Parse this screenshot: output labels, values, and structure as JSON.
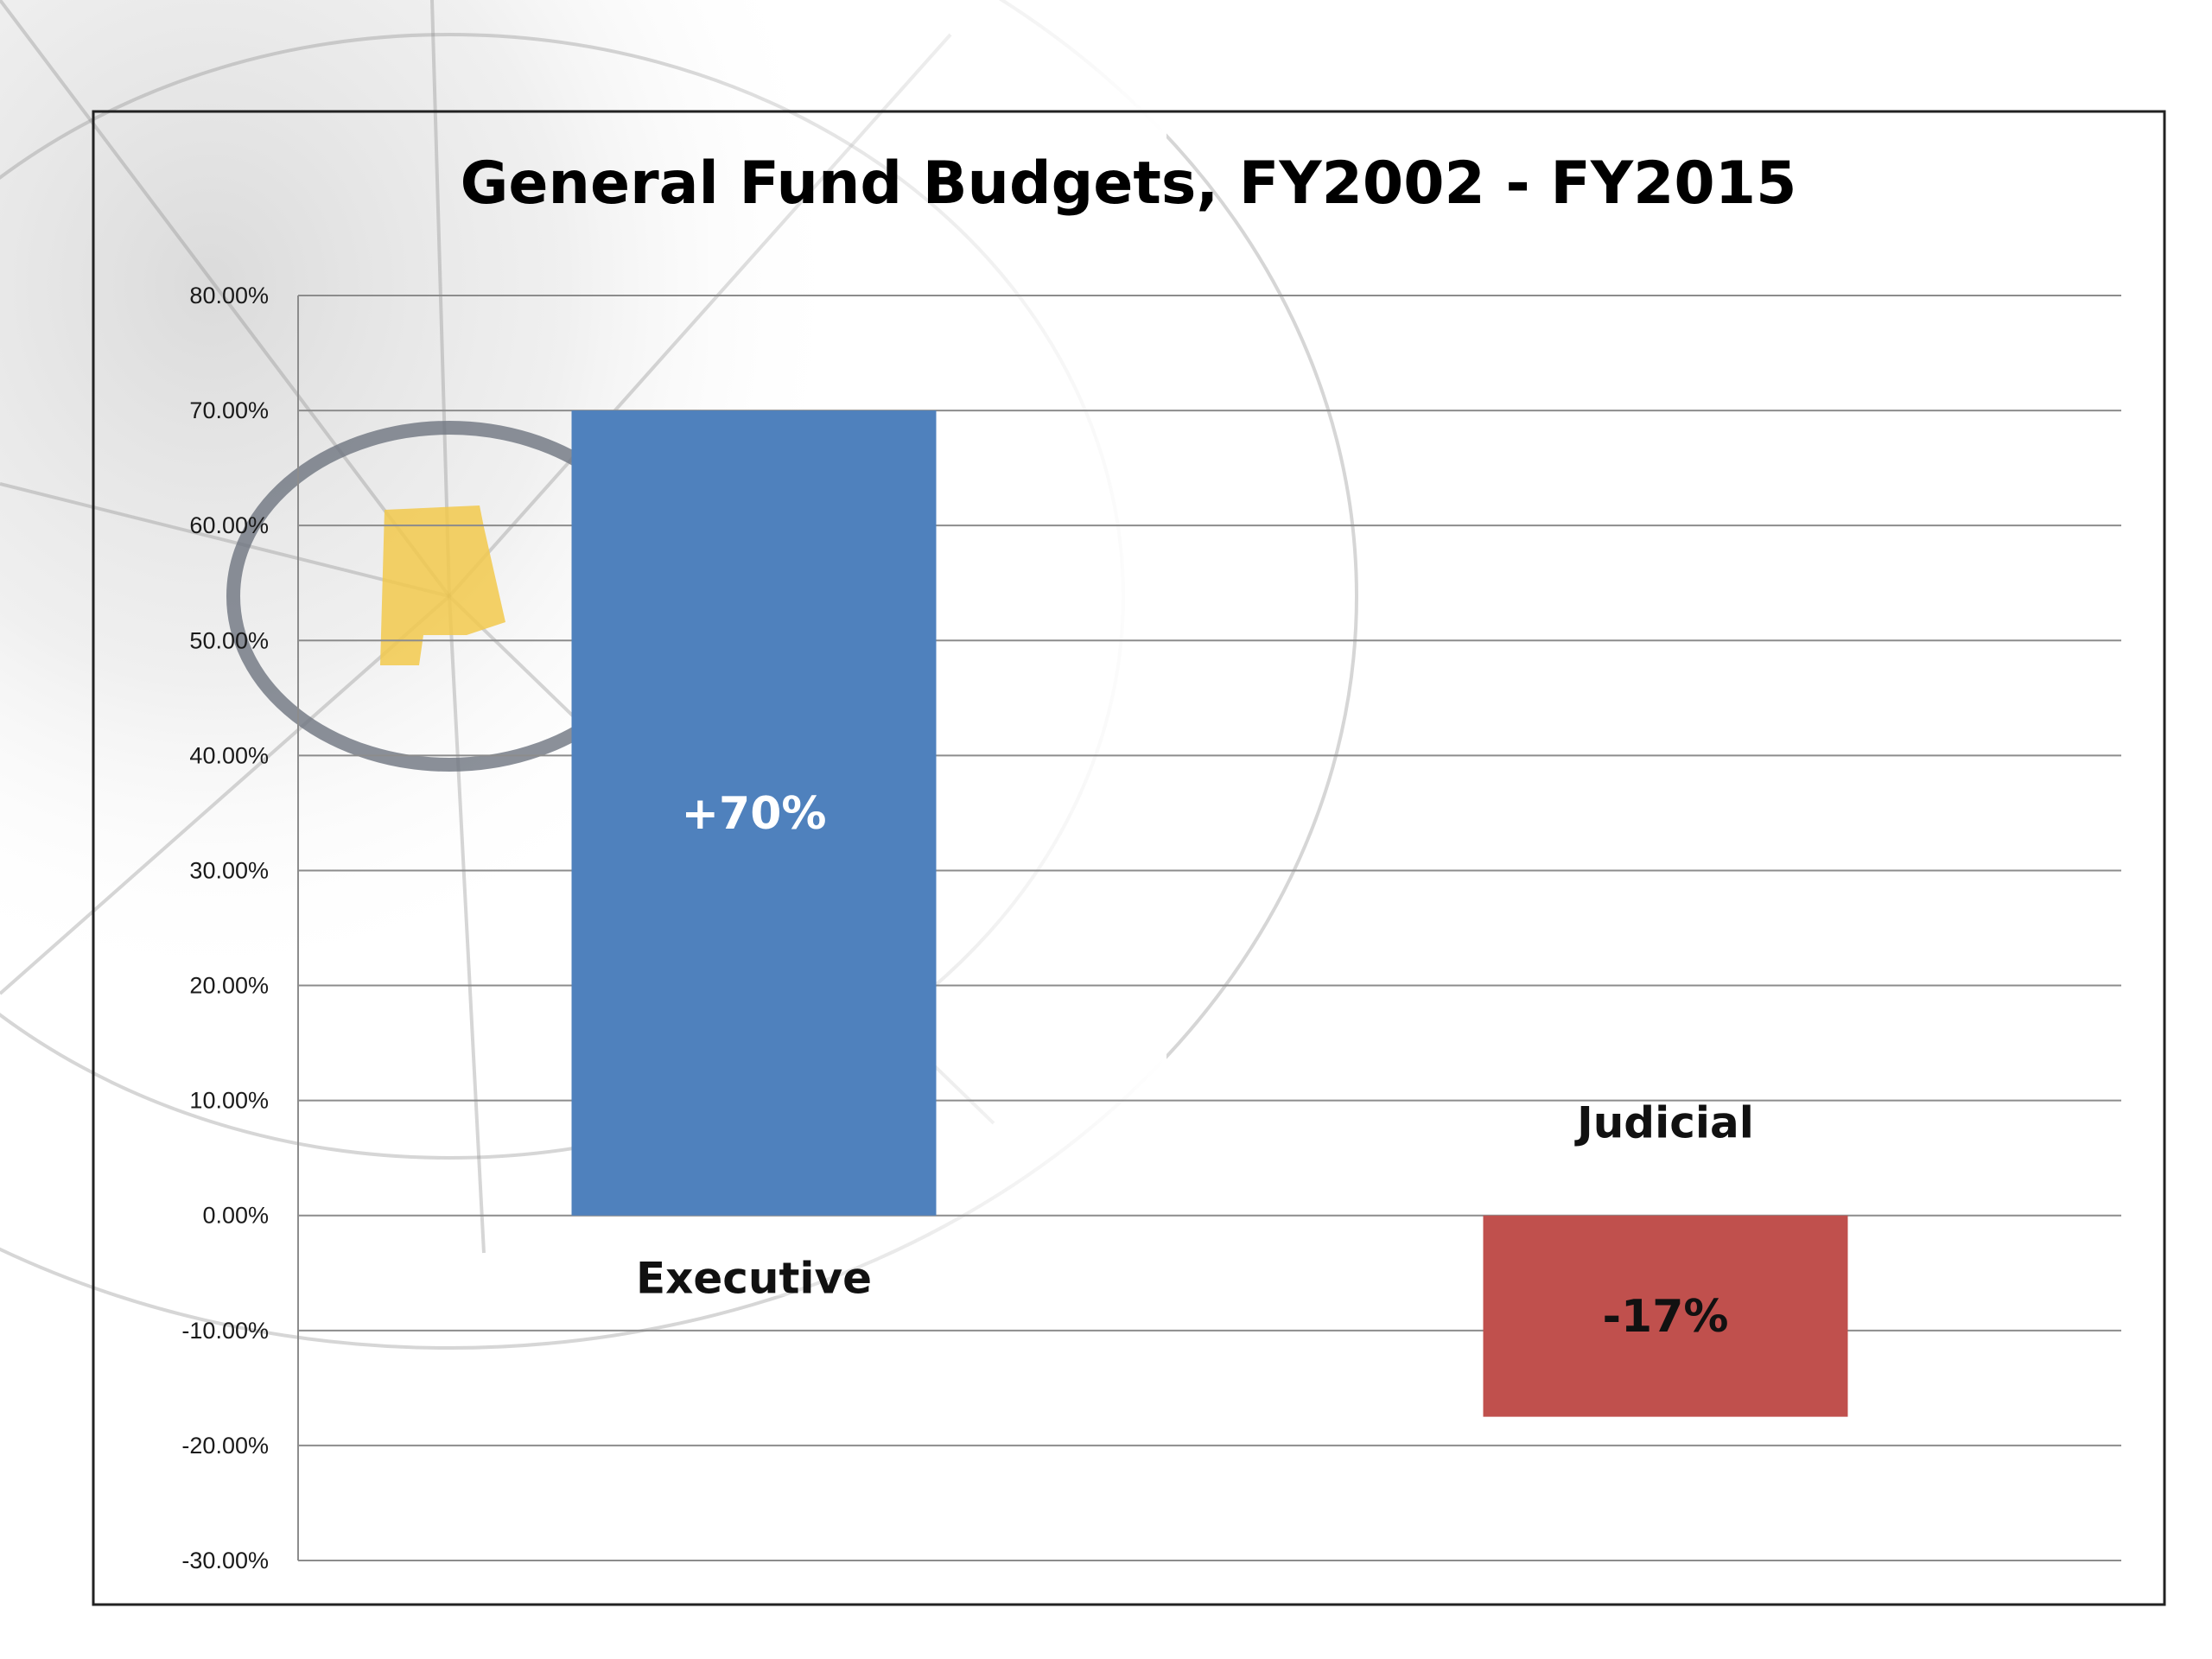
{
  "chart_data": {
    "type": "bar",
    "title": "General Fund Budgets, FY2002 - FY2015",
    "xlabel": "",
    "ylabel": "",
    "categories": [
      "Executive",
      "Judicial"
    ],
    "values": [
      70,
      -17.5
    ],
    "data_labels": [
      "+70%",
      "-17%"
    ],
    "colors": [
      "#4f81bd",
      "#c0504d"
    ],
    "label_colors": [
      "#ffffff",
      "#111111"
    ],
    "ylim": [
      -30,
      80
    ],
    "yticks": [
      80,
      70,
      60,
      50,
      40,
      30,
      20,
      10,
      0,
      -10,
      -20,
      -30
    ],
    "ytick_labels": [
      "80.00%",
      "70.00%",
      "60.00%",
      "50.00%",
      "40.00%",
      "30.00%",
      "20.00%",
      "10.00%",
      "0.00%",
      "-10.00%",
      "-20.00%",
      "-30.00%"
    ],
    "grid": true,
    "legend": "none"
  }
}
